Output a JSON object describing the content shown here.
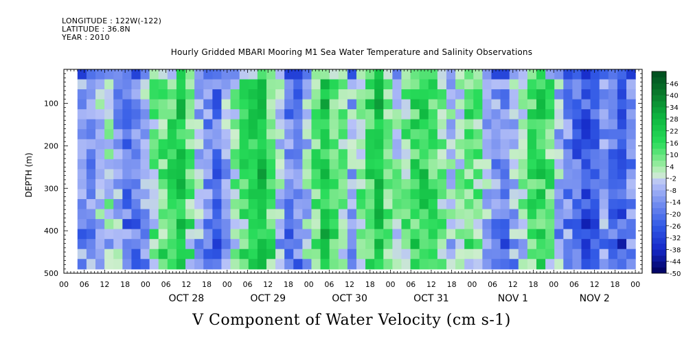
{
  "header": {
    "longitude": "LONGITUDE : 122W(-122)",
    "latitude": "LATITUDE : 36.8N",
    "year": "YEAR : 2010"
  },
  "chart_data": {
    "type": "heatmap",
    "title": "Hourly Gridded MBARI Mooring M1 Sea Water Temperature and Salinity Observations",
    "xlabel": "V Component of Water Velocity (cm s-1)",
    "ylabel": "DEPTH (m)",
    "x_day_labels": [
      "OCT 28",
      "OCT 29",
      "OCT 30",
      "OCT 31",
      "NOV 1",
      "NOV 2"
    ],
    "x_hour_tick_labels": [
      "00",
      "06",
      "12",
      "18",
      "00",
      "06",
      "12",
      "18",
      "00",
      "06",
      "12",
      "18",
      "00",
      "06",
      "12",
      "18",
      "00",
      "06",
      "12",
      "18",
      "00",
      "06",
      "12",
      "18",
      "00",
      "06",
      "12",
      "18",
      "00"
    ],
    "y_ticks": [
      100,
      200,
      300,
      400,
      500
    ],
    "y_range": [
      500,
      20
    ],
    "x_range_hours": [
      "2010-10-27T00",
      "2010-11-03T02"
    ],
    "data_extent": {
      "start": "2010-10-27T04",
      "end": "2010-11-03T00",
      "depth_top": 20,
      "depth_bottom": 490
    },
    "colorbar": {
      "labels": [
        46,
        40,
        34,
        28,
        22,
        16,
        10,
        4,
        -2,
        -8,
        -14,
        -20,
        -26,
        -32,
        -38,
        -44,
        -50
      ],
      "range": [
        -50,
        52
      ],
      "step": 3
    },
    "pattern_description_values": {
      "column_means": [
        -12,
        -15,
        -5,
        0,
        -10,
        -18,
        -16,
        -8,
        6,
        10,
        14,
        20,
        8,
        -6,
        -14,
        -20,
        -10,
        4,
        12,
        18,
        26,
        10,
        -4,
        -16,
        -18,
        -4,
        10,
        22,
        14,
        4,
        -8,
        6,
        16,
        24,
        12,
        2,
        8,
        16,
        20,
        14,
        6,
        -4,
        2,
        12,
        6,
        -6,
        -12,
        -16,
        -8,
        4,
        14,
        18,
        10,
        -6,
        -16,
        -22,
        -26,
        -20,
        -12,
        -20,
        -24,
        -16
      ]
    }
  }
}
